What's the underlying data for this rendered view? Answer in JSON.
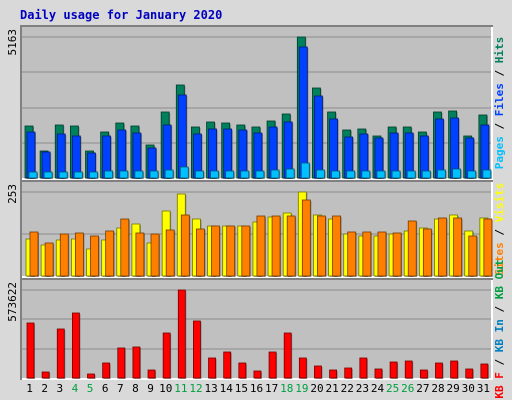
{
  "title": "Daily usage for January 2020",
  "colors": {
    "background": "#d9d9d9",
    "panel": "#c0c0c0",
    "title": "#0000c0",
    "hits": "#00805c",
    "files": "#0040ff",
    "pages": "#00c0ff",
    "visits": "#ffff00",
    "sites": "#ff8000",
    "kbytes": "#ff0000",
    "kbin": "#0080c0",
    "kbout": "#00a040"
  },
  "chart_data": [
    {
      "type": "bar",
      "panel": "hits-files-pages",
      "ymax_label": "5163",
      "ylim": [
        0,
        5163
      ],
      "grid": true,
      "legend": [
        {
          "name": "Pages",
          "color": "#00c0ff"
        },
        {
          "name": "Files",
          "color": "#0040ff"
        },
        {
          "name": "Hits",
          "color": "#00805c"
        }
      ],
      "series": [
        {
          "name": "Hits",
          "values": [
            1900,
            1000,
            1950,
            1900,
            1000,
            1700,
            2000,
            1900,
            1200,
            2400,
            3400,
            1850,
            2050,
            2000,
            1950,
            1850,
            2100,
            2350,
            5163,
            3300,
            2400,
            1750,
            1800,
            1550,
            1850,
            1850,
            1700,
            2400,
            2450,
            1550,
            2300
          ]
        },
        {
          "name": "Files",
          "values": [
            1700,
            950,
            1600,
            1550,
            900,
            1550,
            1750,
            1650,
            1100,
            1950,
            3050,
            1600,
            1800,
            1800,
            1750,
            1650,
            1850,
            2050,
            4800,
            3000,
            2150,
            1500,
            1600,
            1450,
            1650,
            1650,
            1550,
            2150,
            2200,
            1450,
            1950
          ]
        },
        {
          "name": "Pages",
          "values": [
            220,
            230,
            220,
            230,
            230,
            240,
            250,
            260,
            240,
            280,
            420,
            250,
            260,
            250,
            250,
            250,
            300,
            320,
            560,
            300,
            260,
            240,
            250,
            240,
            250,
            250,
            260,
            300,
            320,
            240,
            280
          ]
        }
      ]
    },
    {
      "type": "bar",
      "panel": "visits-sites",
      "ymax_label": "253",
      "ylim": [
        0,
        253
      ],
      "grid": true,
      "legend": [
        {
          "name": "Sites",
          "color": "#ff8000"
        },
        {
          "name": "Visits",
          "color": "#ffff00"
        }
      ],
      "series": [
        {
          "name": "Visits",
          "values": [
            112,
            92,
            108,
            112,
            80,
            108,
            146,
            157,
            100,
            195,
            247,
            171,
            150,
            150,
            150,
            164,
            177,
            191,
            253,
            183,
            171,
            126,
            121,
            121,
            126,
            135,
            146,
            171,
            183,
            135,
            174
          ]
        },
        {
          "name": "Sites",
          "values": [
            132,
            100,
            128,
            130,
            120,
            135,
            173,
            130,
            125,
            140,
            184,
            143,
            150,
            150,
            150,
            180,
            180,
            180,
            230,
            180,
            180,
            132,
            132,
            132,
            130,
            165,
            141,
            175,
            175,
            120,
            172
          ]
        }
      ]
    },
    {
      "type": "bar",
      "panel": "kbytes",
      "ymax_label": "573622",
      "ylim": [
        0,
        573622
      ],
      "grid": true,
      "legend": [
        {
          "name": "KB F",
          "color": "#ff0000"
        },
        {
          "name": "KB In",
          "color": "#0080c0"
        },
        {
          "name": "KB Out",
          "color": "#00a040"
        }
      ],
      "series": [
        {
          "name": "KB F",
          "values": [
            356000,
            38000,
            322000,
            425000,
            28000,
            98000,
            198000,
            203000,
            55000,
            292000,
            573622,
            372000,
            128000,
            172000,
            98000,
            48000,
            172000,
            292000,
            132000,
            78000,
            52000,
            68000,
            128000,
            58000,
            102000,
            110000,
            55000,
            98000,
            112000,
            58000,
            90000
          ]
        }
      ],
      "categories": [
        "1",
        "2",
        "3",
        "4",
        "5",
        "6",
        "7",
        "8",
        "9",
        "10",
        "11",
        "12",
        "13",
        "14",
        "15",
        "16",
        "17",
        "18",
        "19",
        "20",
        "21",
        "22",
        "23",
        "24",
        "25",
        "26",
        "27",
        "28",
        "29",
        "30",
        "31"
      ],
      "weekend_days": [
        "4",
        "5",
        "11",
        "12",
        "18",
        "19",
        "25",
        "26"
      ]
    }
  ]
}
